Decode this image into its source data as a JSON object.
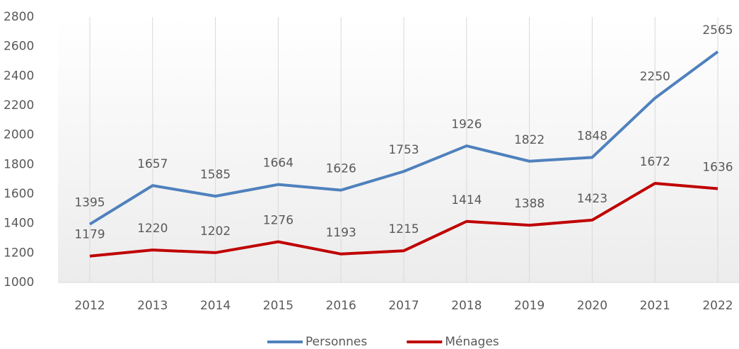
{
  "chart_data": {
    "type": "line",
    "categories": [
      "2012",
      "2013",
      "2014",
      "2015",
      "2016",
      "2017",
      "2018",
      "2019",
      "2020",
      "2021",
      "2022"
    ],
    "series": [
      {
        "name": "Personnes",
        "color": "#4f81bd",
        "values": [
          1395,
          1657,
          1585,
          1664,
          1626,
          1753,
          1926,
          1822,
          1848,
          2250,
          2565
        ]
      },
      {
        "name": "Ménages",
        "color": "#c00000",
        "values": [
          1179,
          1220,
          1202,
          1276,
          1193,
          1215,
          1414,
          1388,
          1423,
          1672,
          1636
        ]
      }
    ],
    "ylim": [
      1000,
      2800
    ],
    "yticks": [
      1000,
      1200,
      1400,
      1600,
      1800,
      2000,
      2200,
      2400,
      2600,
      2800
    ],
    "grid": false,
    "data_labels": true,
    "legend": "bottom"
  }
}
